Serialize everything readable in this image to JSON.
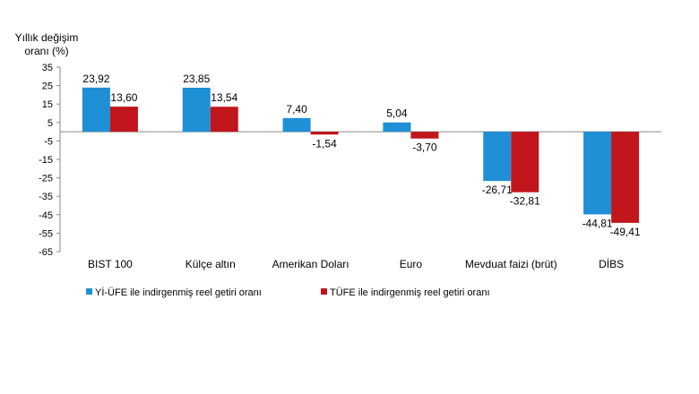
{
  "chart_data": {
    "type": "bar",
    "ylabel": "Yıllık değişim oranı (%)",
    "ylabel_lines": [
      "Yıllık değişim",
      "oranı (%)"
    ],
    "ylim": [
      -65,
      35
    ],
    "yticks": [
      35,
      25,
      15,
      5,
      -5,
      -15,
      -25,
      -35,
      -45,
      -55,
      -65
    ],
    "grid": false,
    "legend_position": "bottom",
    "categories": [
      "BIST 100",
      "Külçe altın",
      "Amerikan Doları",
      "Euro",
      "Mevduat faizi (brüt)",
      "DİBS"
    ],
    "series": [
      {
        "name": "Yİ-ÜFE ile indirgenmiş reel getiri oranı",
        "color": "#1f8fd6",
        "values": [
          23.92,
          23.85,
          7.4,
          5.04,
          -26.71,
          -44.81
        ],
        "labels": [
          "23,92",
          "23,85",
          "7,40",
          "5,04",
          "-26,71",
          "-44,81"
        ]
      },
      {
        "name": "TÜFE ile indirgenmiş reel getiri oranı",
        "color": "#c0161c",
        "values": [
          13.6,
          13.54,
          -1.54,
          -3.7,
          -32.81,
          -49.41
        ],
        "labels": [
          "13,60",
          "13,54",
          "-1,54",
          "-3,70",
          "-32,81",
          "-49,41"
        ]
      }
    ]
  }
}
